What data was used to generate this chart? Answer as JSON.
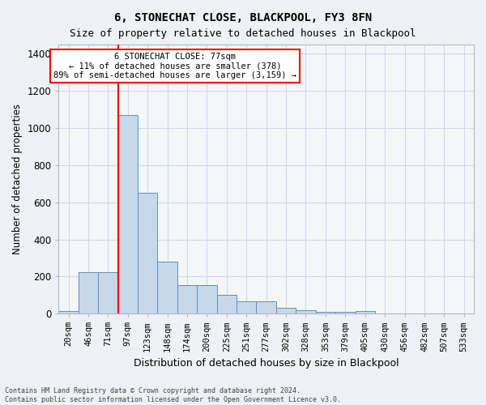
{
  "title": "6, STONECHAT CLOSE, BLACKPOOL, FY3 8FN",
  "subtitle": "Size of property relative to detached houses in Blackpool",
  "xlabel": "Distribution of detached houses by size in Blackpool",
  "ylabel": "Number of detached properties",
  "bar_values": [
    15,
    225,
    225,
    1070,
    650,
    280,
    155,
    155,
    100,
    65,
    65,
    30,
    20,
    10,
    10,
    15,
    0,
    0,
    0,
    0,
    0
  ],
  "bar_labels": [
    "20sqm",
    "46sqm",
    "71sqm",
    "97sqm",
    "123sqm",
    "148sqm",
    "174sqm",
    "200sqm",
    "225sqm",
    "251sqm",
    "277sqm",
    "302sqm",
    "328sqm",
    "353sqm",
    "379sqm",
    "405sqm",
    "430sqm",
    "456sqm",
    "482sqm",
    "507sqm",
    "533sqm"
  ],
  "bar_color": "#c8d8e8",
  "bar_edge_color": "#6090b8",
  "grid_color": "#d0d8e8",
  "property_line_bin": 2.5,
  "property_line_color": "red",
  "annotation_text": "6 STONECHAT CLOSE: 77sqm\n← 11% of detached houses are smaller (378)\n89% of semi-detached houses are larger (3,159) →",
  "annotation_box_color": "white",
  "annotation_box_edge": "red",
  "ylim": [
    0,
    1450
  ],
  "yticks": [
    0,
    200,
    400,
    600,
    800,
    1000,
    1200,
    1400
  ],
  "footnote": "Contains HM Land Registry data © Crown copyright and database right 2024.\nContains public sector information licensed under the Open Government Licence v3.0.",
  "bg_color": "#eef2f6",
  "plot_bg_color": "#f4f7fa"
}
